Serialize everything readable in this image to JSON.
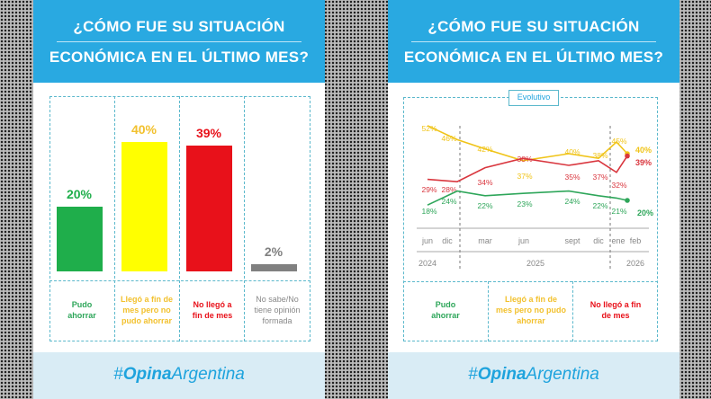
{
  "title_line1": "¿CÓMO FUE SU SITUACIÓN",
  "title_line2": "ECONÓMICA EN EL ÚLTIMO MES?",
  "brand_hash": "#",
  "brand_bold": "Opina",
  "brand_rest": "Argentina",
  "categories": [
    "Pudo ahorrar",
    "Llegó a fin de mes pero no pudo ahorrar",
    "No llegó a fin de mes",
    "No sabe/No tiene opinión formada"
  ],
  "colors": {
    "green": "#1fae4b",
    "yellow": "#ffff00",
    "red": "#e8111a",
    "grey": "#808080",
    "yellow_text": "#f2c12e",
    "line_yellow": "#f0c419",
    "line_red": "#d9363e",
    "line_green": "#2ea65a"
  },
  "chart_data": [
    {
      "type": "bar",
      "categories": [
        "Pudo ahorrar",
        "Llegó a fin de mes pero no pudo ahorrar",
        "No llegó a fin de mes",
        "No sabe/No tiene opinión formada"
      ],
      "values": [
        20,
        40,
        39,
        2
      ],
      "labels": [
        "20%",
        "40%",
        "39%",
        "2%"
      ],
      "ylim": [
        0,
        45
      ]
    },
    {
      "type": "line",
      "title": "Evolutivo",
      "x": [
        "jun",
        "dic",
        "mar",
        "jun",
        "sept",
        "dic",
        "ene",
        "feb"
      ],
      "years": [
        "2024",
        "2025",
        "2026"
      ],
      "series": [
        {
          "name": "Llegó a fin de mes pero no pudo ahorrar",
          "values": [
            52,
            46,
            42,
            37,
            40,
            38,
            45,
            40
          ]
        },
        {
          "name": "No llegó a fin de mes",
          "values": [
            29,
            28,
            34,
            38,
            35,
            37,
            32,
            39
          ]
        },
        {
          "name": "Pudo ahorrar",
          "values": [
            18,
            24,
            22,
            23,
            24,
            22,
            21,
            20
          ]
        }
      ],
      "legend": [
        "Pudo ahorrar",
        "Llegó a fin de mes pero no pudo ahorrar",
        "No llegó a fin de mes"
      ]
    }
  ]
}
